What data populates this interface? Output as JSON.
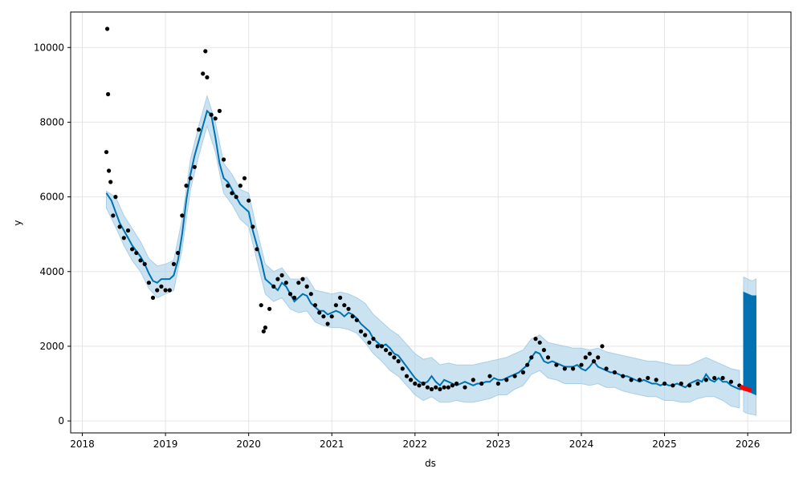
{
  "chart_data": {
    "type": "line",
    "title": "",
    "xlabel": "ds",
    "ylabel": "y",
    "xlim": [
      2017.86,
      2026.52
    ],
    "ylim": [
      -320,
      10950
    ],
    "grid": true,
    "x_ticks": [
      2018,
      2019,
      2020,
      2021,
      2022,
      2023,
      2024,
      2025,
      2026
    ],
    "x_tick_labels": [
      "2018",
      "2019",
      "2020",
      "2021",
      "2022",
      "2023",
      "2024",
      "2025",
      "2026"
    ],
    "y_ticks": [
      0,
      2000,
      4000,
      6000,
      8000,
      10000
    ],
    "y_tick_labels": [
      "0",
      "2000",
      "4000",
      "6000",
      "8000",
      "10000"
    ],
    "colors": {
      "observed": "#000000",
      "forecast": "#0072B2",
      "interval": "#a9cfe6",
      "actual_recent": "#ff0000",
      "grid": "#e5e5e5"
    },
    "series": [
      {
        "kind": "observed",
        "x": [
          2018.29,
          2018.3,
          2018.31,
          2018.32,
          2018.34,
          2018.37,
          2018.4,
          2018.45,
          2018.5,
          2018.55,
          2018.6,
          2018.65,
          2018.7,
          2018.75,
          2018.8,
          2018.85,
          2018.9,
          2018.95,
          2019.0,
          2019.05,
          2019.1,
          2019.15,
          2019.2,
          2019.25,
          2019.3,
          2019.35,
          2019.4,
          2019.45,
          2019.48,
          2019.5,
          2019.55,
          2019.6,
          2019.65,
          2019.7,
          2019.75,
          2019.8,
          2019.85,
          2019.9,
          2019.95,
          2020.0,
          2020.05,
          2020.1,
          2020.15,
          2020.18,
          2020.2,
          2020.25,
          2020.3,
          2020.35,
          2020.4,
          2020.45,
          2020.5,
          2020.55,
          2020.6,
          2020.65,
          2020.7,
          2020.75,
          2020.8,
          2020.85,
          2020.9,
          2020.95,
          2021.0,
          2021.05,
          2021.1,
          2021.15,
          2021.2,
          2021.25,
          2021.3,
          2021.35,
          2021.4,
          2021.45,
          2021.5,
          2021.55,
          2021.6,
          2021.65,
          2021.7,
          2021.75,
          2021.8,
          2021.85,
          2021.9,
          2021.95,
          2022.0,
          2022.05,
          2022.1,
          2022.15,
          2022.2,
          2022.25,
          2022.3,
          2022.35,
          2022.4,
          2022.45,
          2022.5,
          2022.6,
          2022.7,
          2022.8,
          2022.9,
          2023.0,
          2023.1,
          2023.2,
          2023.3,
          2023.35,
          2023.4,
          2023.45,
          2023.5,
          2023.55,
          2023.6,
          2023.7,
          2023.8,
          2023.9,
          2024.0,
          2024.05,
          2024.1,
          2024.15,
          2024.2,
          2024.25,
          2024.3,
          2024.4,
          2024.5,
          2024.6,
          2024.7,
          2024.8,
          2024.9,
          2025.0,
          2025.1,
          2025.2,
          2025.3,
          2025.4,
          2025.5,
          2025.6,
          2025.7,
          2025.8,
          2025.9
        ],
        "values": [
          7200,
          10500,
          8750,
          6700,
          6400,
          5500,
          6000,
          5200,
          4900,
          5100,
          4600,
          4500,
          4300,
          4200,
          3700,
          3300,
          3500,
          3600,
          3500,
          3500,
          4200,
          4500,
          5500,
          6300,
          6500,
          6800,
          7800,
          9300,
          9900,
          9200,
          8200,
          8100,
          8300,
          7000,
          6300,
          6100,
          6000,
          6300,
          6500,
          5900,
          5200,
          4600,
          3100,
          2400,
          2500,
          3000,
          3600,
          3800,
          3900,
          3700,
          3400,
          3300,
          3700,
          3800,
          3600,
          3400,
          3100,
          2900,
          2800,
          2600,
          2800,
          3100,
          3300,
          3100,
          3000,
          2800,
          2700,
          2400,
          2300,
          2100,
          2200,
          2000,
          2000,
          1900,
          1800,
          1700,
          1600,
          1400,
          1200,
          1100,
          1000,
          950,
          1000,
          900,
          850,
          900,
          850,
          900,
          900,
          950,
          1000,
          900,
          1100,
          1000,
          1200,
          1000,
          1100,
          1200,
          1300,
          1500,
          1700,
          2200,
          2100,
          1900,
          1700,
          1500,
          1400,
          1400,
          1500,
          1700,
          1800,
          1600,
          1700,
          2000,
          1400,
          1300,
          1200,
          1100,
          1100,
          1150,
          1100,
          1000,
          950,
          1000,
          950,
          1000,
          1100,
          1150,
          1150,
          1050,
          950
        ]
      },
      {
        "kind": "forecast",
        "x": [
          2018.29,
          2018.35,
          2018.4,
          2018.45,
          2018.5,
          2018.55,
          2018.6,
          2018.65,
          2018.7,
          2018.75,
          2018.8,
          2018.85,
          2018.9,
          2018.95,
          2019.0,
          2019.05,
          2019.1,
          2019.15,
          2019.2,
          2019.25,
          2019.3,
          2019.35,
          2019.4,
          2019.45,
          2019.5,
          2019.55,
          2019.6,
          2019.65,
          2019.7,
          2019.75,
          2019.8,
          2019.85,
          2019.9,
          2019.95,
          2020.0,
          2020.05,
          2020.1,
          2020.15,
          2020.2,
          2020.25,
          2020.3,
          2020.35,
          2020.4,
          2020.45,
          2020.5,
          2020.55,
          2020.6,
          2020.65,
          2020.7,
          2020.75,
          2020.8,
          2020.85,
          2020.9,
          2020.95,
          2021.0,
          2021.05,
          2021.1,
          2021.15,
          2021.2,
          2021.25,
          2021.3,
          2021.35,
          2021.4,
          2021.45,
          2021.5,
          2021.55,
          2021.6,
          2021.65,
          2021.7,
          2021.75,
          2021.8,
          2021.85,
          2021.9,
          2021.95,
          2022.0,
          2022.05,
          2022.1,
          2022.15,
          2022.2,
          2022.25,
          2022.3,
          2022.35,
          2022.4,
          2022.45,
          2022.5,
          2022.55,
          2022.6,
          2022.65,
          2022.7,
          2022.75,
          2022.8,
          2022.85,
          2022.9,
          2022.95,
          2023.0,
          2023.05,
          2023.1,
          2023.15,
          2023.2,
          2023.25,
          2023.3,
          2023.35,
          2023.4,
          2023.45,
          2023.5,
          2023.55,
          2023.6,
          2023.65,
          2023.7,
          2023.75,
          2023.8,
          2023.85,
          2023.9,
          2023.95,
          2024.0,
          2024.05,
          2024.1,
          2024.15,
          2024.2,
          2024.25,
          2024.3,
          2024.35,
          2024.4,
          2024.45,
          2024.5,
          2024.55,
          2024.6,
          2024.65,
          2024.7,
          2024.75,
          2024.8,
          2024.85,
          2024.9,
          2024.95,
          2025.0,
          2025.05,
          2025.1,
          2025.15,
          2025.2,
          2025.25,
          2025.3,
          2025.35,
          2025.4,
          2025.45,
          2025.5,
          2025.55,
          2025.6,
          2025.65,
          2025.7,
          2025.75,
          2025.8,
          2025.85,
          2025.9,
          2025.95
        ],
        "values": [
          6100,
          5900,
          5600,
          5300,
          5100,
          4900,
          4700,
          4550,
          4400,
          4200,
          3950,
          3750,
          3700,
          3800,
          3800,
          3800,
          3900,
          4300,
          5000,
          5900,
          6600,
          7100,
          7500,
          7900,
          8300,
          8200,
          7600,
          6900,
          6500,
          6400,
          6200,
          6000,
          5800,
          5700,
          5600,
          5100,
          4700,
          4300,
          3800,
          3700,
          3600,
          3500,
          3700,
          3600,
          3400,
          3200,
          3300,
          3400,
          3350,
          3150,
          3050,
          2950,
          2950,
          2850,
          2900,
          2950,
          2900,
          2800,
          2900,
          2850,
          2750,
          2600,
          2500,
          2400,
          2200,
          2100,
          2000,
          2050,
          1950,
          1800,
          1750,
          1600,
          1450,
          1300,
          1150,
          1050,
          1000,
          1050,
          1200,
          1050,
          950,
          1100,
          1050,
          1000,
          950,
          1000,
          1050,
          1000,
          950,
          1000,
          1000,
          1050,
          1050,
          1150,
          1100,
          1100,
          1150,
          1200,
          1250,
          1300,
          1400,
          1500,
          1700,
          1850,
          1800,
          1600,
          1550,
          1600,
          1550,
          1500,
          1450,
          1450,
          1450,
          1500,
          1400,
          1350,
          1450,
          1600,
          1450,
          1400,
          1350,
          1300,
          1300,
          1250,
          1200,
          1200,
          1150,
          1100,
          1050,
          1100,
          1050,
          1000,
          1000,
          950,
          1000,
          950,
          950,
          1000,
          950,
          900,
          1000,
          1050,
          1100,
          1050,
          1250,
          1100,
          1050,
          1150,
          1050,
          1050,
          950,
          900,
          850,
          850
        ]
      },
      {
        "kind": "uncertainty_interval",
        "x": [
          2018.29,
          2018.4,
          2018.5,
          2018.6,
          2018.7,
          2018.8,
          2018.9,
          2019.0,
          2019.1,
          2019.2,
          2019.3,
          2019.4,
          2019.5,
          2019.6,
          2019.7,
          2019.8,
          2019.9,
          2020.0,
          2020.1,
          2020.2,
          2020.3,
          2020.4,
          2020.5,
          2020.6,
          2020.7,
          2020.8,
          2020.9,
          2021.0,
          2021.1,
          2021.2,
          2021.3,
          2021.4,
          2021.5,
          2021.6,
          2021.7,
          2021.8,
          2021.9,
          2022.0,
          2022.1,
          2022.2,
          2022.3,
          2022.4,
          2022.5,
          2022.6,
          2022.7,
          2022.8,
          2022.9,
          2023.0,
          2023.1,
          2023.2,
          2023.3,
          2023.4,
          2023.5,
          2023.6,
          2023.7,
          2023.8,
          2023.9,
          2024.0,
          2024.1,
          2024.2,
          2024.3,
          2024.4,
          2024.5,
          2024.6,
          2024.7,
          2024.8,
          2024.9,
          2025.0,
          2025.1,
          2025.2,
          2025.3,
          2025.4,
          2025.5,
          2025.6,
          2025.7,
          2025.8,
          2025.9
        ],
        "lower": [
          5700,
          5200,
          4700,
          4300,
          4000,
          3550,
          3300,
          3400,
          3500,
          4600,
          6200,
          7100,
          7900,
          7200,
          6100,
          5800,
          5400,
          5200,
          4300,
          3400,
          3200,
          3300,
          3000,
          2900,
          2950,
          2650,
          2550,
          2500,
          2500,
          2450,
          2350,
          2100,
          1800,
          1600,
          1350,
          1200,
          950,
          700,
          550,
          650,
          500,
          500,
          550,
          500,
          500,
          550,
          600,
          700,
          700,
          850,
          950,
          1250,
          1350,
          1150,
          1100,
          1000,
          1000,
          1000,
          950,
          1000,
          900,
          900,
          800,
          750,
          700,
          650,
          650,
          550,
          550,
          500,
          500,
          600,
          650,
          650,
          550,
          400,
          350
        ],
        "upper": [
          6150,
          6000,
          5500,
          5150,
          4800,
          4350,
          4150,
          4200,
          4300,
          5400,
          7000,
          7900,
          8700,
          8000,
          6900,
          6600,
          6200,
          6100,
          5100,
          4200,
          4000,
          4100,
          3800,
          3800,
          3850,
          3500,
          3450,
          3400,
          3450,
          3400,
          3300,
          3150,
          2850,
          2650,
          2450,
          2300,
          2050,
          1800,
          1650,
          1700,
          1500,
          1550,
          1500,
          1500,
          1500,
          1550,
          1600,
          1650,
          1700,
          1800,
          1900,
          2200,
          2300,
          2100,
          2050,
          2000,
          1950,
          1950,
          1900,
          1950,
          1850,
          1800,
          1750,
          1700,
          1650,
          1600,
          1600,
          1550,
          1500,
          1500,
          1500,
          1600,
          1700,
          1600,
          1500,
          1400,
          1350
        ]
      },
      {
        "kind": "future_forecast",
        "x": [
          2025.95,
          2026.0,
          2026.05,
          2026.1
        ],
        "values": [
          850,
          800,
          780,
          760
        ],
        "lower": [
          250,
          200,
          180,
          150
        ],
        "upper": [
          3850,
          3800,
          3750,
          3800
        ],
        "band_inner_lower": [
          850,
          800,
          750,
          700
        ],
        "band_inner_upper": [
          3450,
          3400,
          3350,
          3350
        ]
      },
      {
        "kind": "actual_recent",
        "x": [
          2025.93,
          2025.96,
          2025.99,
          2026.02
        ],
        "values": [
          900,
          870,
          850,
          830
        ]
      }
    ]
  }
}
